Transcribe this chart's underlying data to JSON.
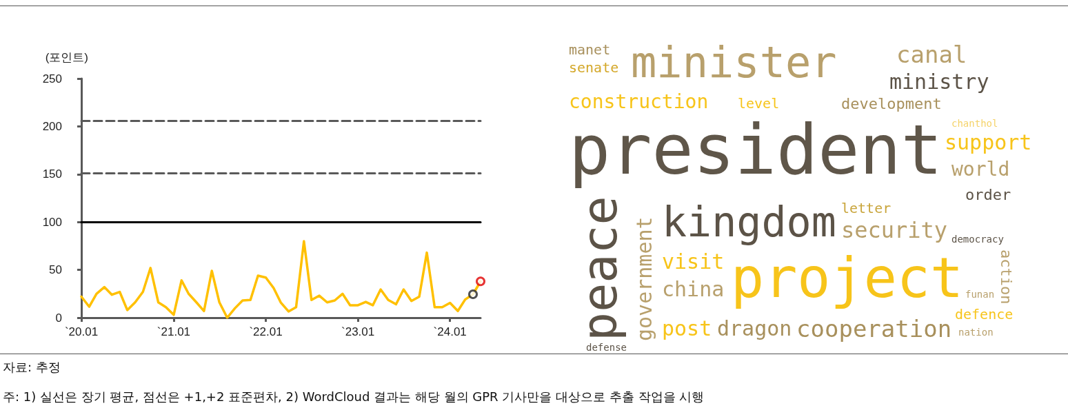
{
  "chart_data": [
    {
      "type": "line",
      "ylabel": "(포인트)",
      "x": [
        "2020-01",
        "2020-02",
        "2020-03",
        "2020-04",
        "2020-05",
        "2020-06",
        "2020-07",
        "2020-08",
        "2020-09",
        "2020-10",
        "2020-11",
        "2020-12",
        "2021-01",
        "2021-02",
        "2021-03",
        "2021-04",
        "2021-05",
        "2021-06",
        "2021-07",
        "2021-08",
        "2021-09",
        "2021-10",
        "2021-11",
        "2021-12",
        "2022-01",
        "2022-02",
        "2022-03",
        "2022-04",
        "2022-05",
        "2022-06",
        "2022-07",
        "2022-08",
        "2022-09",
        "2022-10",
        "2022-11",
        "2022-12",
        "2023-01",
        "2023-02",
        "2023-03",
        "2023-04",
        "2023-05",
        "2023-06",
        "2023-07",
        "2023-08",
        "2023-09",
        "2023-10",
        "2023-11",
        "2023-12",
        "2024-01",
        "2024-02",
        "2024-03",
        "2024-04",
        "2024-05"
      ],
      "series": [
        {
          "color": "#ffc000",
          "values": [
            22,
            11.5,
            25,
            32,
            24,
            27,
            8,
            16,
            27,
            52,
            16,
            11,
            3,
            39,
            25,
            16,
            7,
            49,
            16,
            0,
            10,
            18,
            18.5,
            44,
            42,
            31,
            16,
            6.5,
            11,
            80,
            18.5,
            23,
            16,
            18,
            25,
            13,
            13,
            16.5,
            13,
            29.5,
            18.5,
            14,
            29.5,
            17.5,
            22,
            68,
            11,
            11,
            15.5,
            7,
            19,
            24.5,
            38
          ]
        },
        {
          "type": "scatter",
          "marker": "circle",
          "color": "#262626",
          "x": [
            "2024-04"
          ],
          "values": [
            24.5
          ]
        },
        {
          "type": "scatter",
          "marker": "circle",
          "color": "#e00000",
          "x": [
            "2024-05"
          ],
          "values": [
            38
          ]
        }
      ],
      "marker": "none",
      "line_style": "solid",
      "xlim": [
        "2020-01",
        "2024-05"
      ],
      "xticks": [
        {
          "value": "2020-01",
          "label": "`20.01"
        },
        {
          "value": "2021-01",
          "label": "`21.01"
        },
        {
          "value": "2022-01",
          "label": "`22.01"
        },
        {
          "value": "2023-01",
          "label": "`23.01"
        },
        {
          "value": "2024-01",
          "label": "`24.01"
        }
      ],
      "ylim": [
        0,
        250
      ],
      "yticks": [
        0,
        50,
        100,
        150,
        200,
        250
      ],
      "grid": false,
      "ref_lines": [
        {
          "axis": "y",
          "value": 100,
          "color": "#000000",
          "line_style": "solid"
        },
        {
          "axis": "y",
          "value": 151,
          "color": "#595959",
          "line_style": "dashed"
        },
        {
          "axis": "y",
          "value": 206,
          "color": "#595959",
          "line_style": "dashed"
        }
      ],
      "annotations": [
        "자료: 추정",
        "주: 1) 실선은 장기 평균, 점선은 +1,+2 표준편차, 2) WordCloud 결과는 해당 월의 GPR 기사만을 대상으로 추출 작업을 시행"
      ]
    },
    {
      "type": "other",
      "annotations": [
        "manet",
        "senate",
        "minister",
        "canal",
        "ministry",
        "construction",
        "level",
        "development",
        "president",
        "chanthol",
        "support",
        "kingdom",
        "world",
        "letter",
        "order",
        "peace",
        "government",
        "visit",
        "security",
        "democracy",
        "project",
        "china",
        "action",
        "funan",
        "defence",
        "post",
        "dragon",
        "cooperation",
        "defense",
        "nation"
      ],
      "colors": [
        "#a8905c",
        "#d4a82a",
        "#b8a06c",
        "#b8a06c",
        "#5c5347",
        "#f7c41a",
        "#f7c41a",
        "#a8905c",
        "#5f5649",
        "#f5d36a",
        "#f7c41a",
        "#5c5347",
        "#b8a06c",
        "#c9a53c",
        "#5c5347",
        "#5c5347",
        "#b8a06c",
        "#f7c41a",
        "#b8a06c",
        "#5c5347",
        "#f7c41a",
        "#b8a06c",
        "#b8a06c",
        "#b8a06c",
        "#f7c41a",
        "#f7c41a",
        "#a8905c",
        "#a8905c",
        "#5c5347",
        "#b8a06c"
      ]
    }
  ]
}
